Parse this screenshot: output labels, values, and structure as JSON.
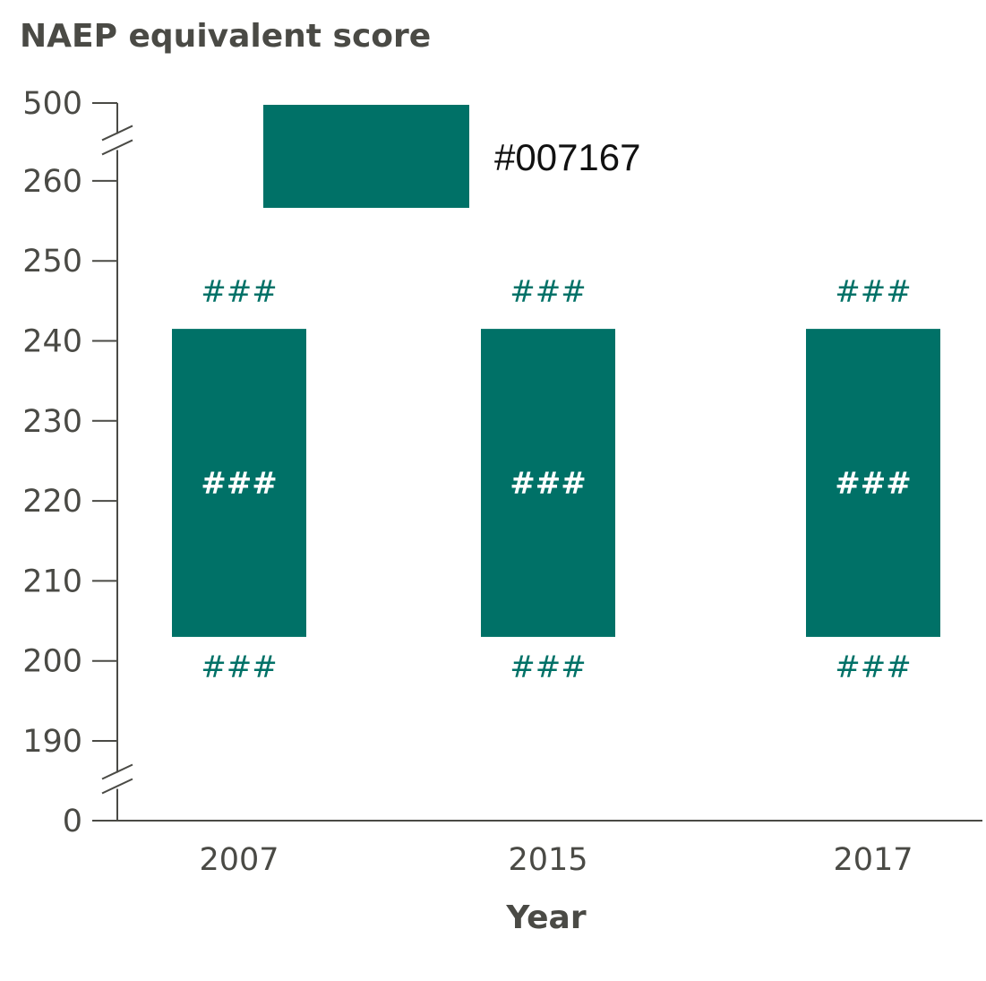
{
  "chart_data": {
    "type": "bar",
    "title": "NAEP equivalent score",
    "xlabel": "Year",
    "ylabel": "",
    "categories": [
      "2007",
      "2015",
      "2017"
    ],
    "series": [
      {
        "name": "#007167",
        "ranges": [
          [
            203,
            241.5
          ],
          [
            203,
            241.5
          ],
          [
            203,
            241.5
          ]
        ],
        "upper_labels": [
          "###",
          "###",
          "###"
        ],
        "middle_labels": [
          "###",
          "###",
          "###"
        ],
        "lower_labels": [
          "###",
          "###",
          "###"
        ]
      }
    ],
    "y_ticks": [
      "0",
      "190",
      "200",
      "210",
      "220",
      "230",
      "240",
      "250",
      "260",
      "500"
    ],
    "ylim": [
      0,
      500
    ],
    "axis_breaks": [
      "between 0 and 190",
      "between 260 and 500"
    ],
    "grid": false,
    "legend_position": "top",
    "colors": {
      "bar": "#007167",
      "text": "#4a4a45"
    }
  }
}
